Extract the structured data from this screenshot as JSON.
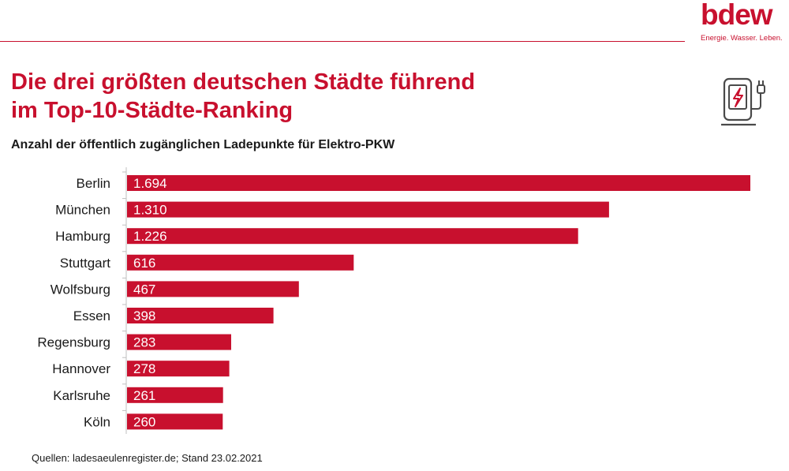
{
  "brand": {
    "logo_text": "bdew",
    "claim": "Energie. Wasser. Leben."
  },
  "header": {
    "title_line1": "Die drei größten deutschen Städte führend",
    "title_line2": "im Top-10-Städte-Ranking",
    "subtitle": "Anzahl der öffentlich zugänglichen Ladepunkte für Elektro-PKW"
  },
  "icons": {
    "charger": "ev-charging-station-icon"
  },
  "colors": {
    "accent": "#c8102e",
    "text": "#1a1a1a"
  },
  "chart_data": {
    "type": "bar",
    "orientation": "horizontal",
    "categories": [
      "Berlin",
      "München",
      "Hamburg",
      "Stuttgart",
      "Wolfsburg",
      "Essen",
      "Regensburg",
      "Hannover",
      "Karlsruhe",
      "Köln"
    ],
    "values": [
      1694,
      1310,
      1226,
      616,
      467,
      398,
      283,
      278,
      261,
      260
    ],
    "value_labels": [
      "1.694",
      "1.310",
      "1.226",
      "616",
      "467",
      "398",
      "283",
      "278",
      "261",
      "260"
    ],
    "title": "Anzahl der öffentlich zugänglichen Ladepunkte für Elektro-PKW",
    "xlim": [
      0,
      1694
    ],
    "grid": false,
    "legend": "none",
    "bar_color": "#c8102e"
  },
  "footer": {
    "source": "Quellen: ladesaeulenregister.de;  Stand 23.02.2021"
  }
}
